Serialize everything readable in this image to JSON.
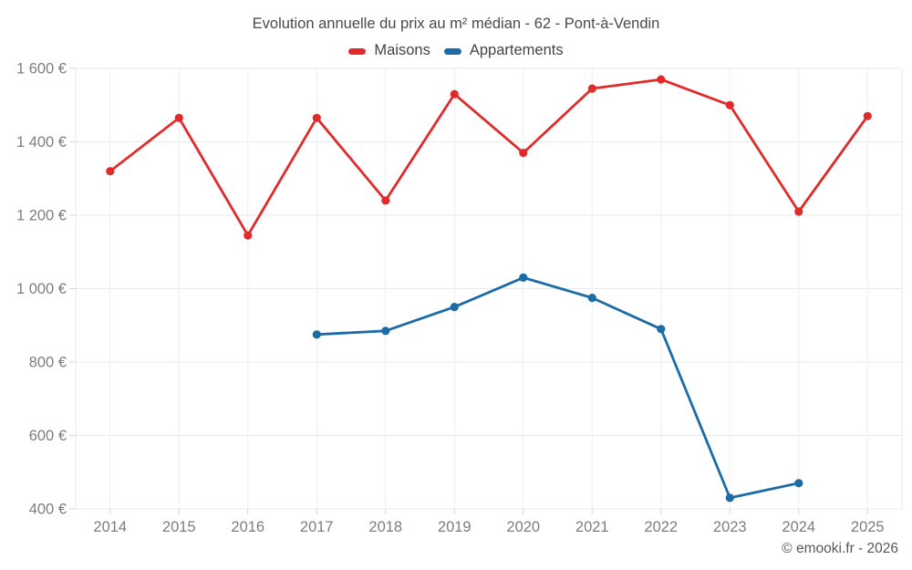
{
  "footer": {
    "watermark": "© emooki.fr - 2026"
  },
  "chart_data": {
    "type": "line",
    "title": "Evolution annuelle du prix au m² médian - 62 - Pont-à-Vendin",
    "categories": [
      "2014",
      "2015",
      "2016",
      "2017",
      "2018",
      "2019",
      "2020",
      "2021",
      "2022",
      "2023",
      "2024",
      "2025"
    ],
    "series": [
      {
        "name": "Maisons",
        "color": "#e12b2b",
        "values": [
          1320,
          1465,
          1145,
          1465,
          1240,
          1530,
          1370,
          1545,
          1570,
          1500,
          1210,
          1470
        ]
      },
      {
        "name": "Appartements",
        "color": "#1b6ca6",
        "values": [
          null,
          null,
          null,
          875,
          885,
          950,
          1030,
          975,
          890,
          430,
          470,
          null
        ]
      }
    ],
    "ylim": [
      400,
      1600
    ],
    "yticks": [
      {
        "value": 1600,
        "label": "1 600 €"
      },
      {
        "value": 1400,
        "label": "1 400 €"
      },
      {
        "value": 1200,
        "label": "1 200 €"
      },
      {
        "value": 1000,
        "label": "1 000 €"
      },
      {
        "value": 800,
        "label": "800 €"
      },
      {
        "value": 600,
        "label": "600 €"
      },
      {
        "value": 400,
        "label": "400 €"
      }
    ],
    "grid": true,
    "legend_position": "top",
    "marker": "circle",
    "currency": "€"
  }
}
